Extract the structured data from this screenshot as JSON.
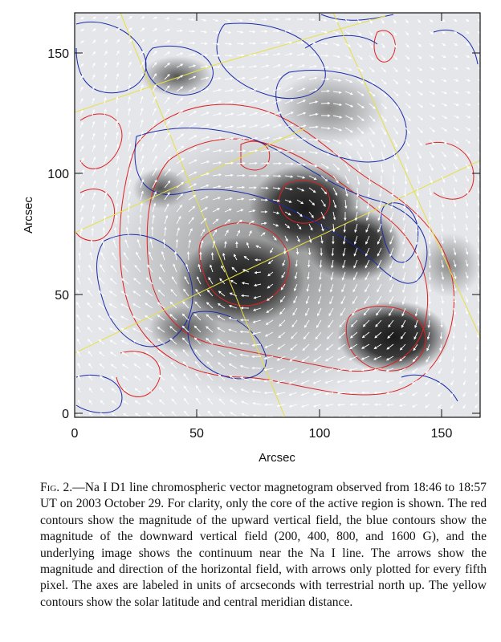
{
  "figure": {
    "xlabel": "Arcsec",
    "ylabel": "Arcsec",
    "x_ticks": [
      "0",
      "50",
      "100",
      "150"
    ],
    "y_ticks": [
      "0",
      "50",
      "100",
      "150"
    ],
    "contour_colors": {
      "upward_field": "#e02020",
      "downward_field": "#1a2aa8",
      "latitude_longitude": "#e8e040",
      "arrows": "#ffffff"
    }
  },
  "caption": {
    "label": "Fig. 2.",
    "text": "—Na I D1 line chromospheric vector magnetogram observed from 18:46 to 18:57 UT on 2003 October 29. For clarity, only the core of the active region is shown. The red contours show the magnitude of the upward vertical field, the blue contours show the magnitude of the downward vertical field (200, 400, 800, and 1600 G), and the underlying image shows the continuum near the Na I line. The arrows show the magnitude and direction of the horizontal field, with arrows only plotted for every fifth pixel. The axes are labeled in units of arcseconds with terrestrial north up. The yellow contours show the solar latitude and central meridian distance."
  }
}
